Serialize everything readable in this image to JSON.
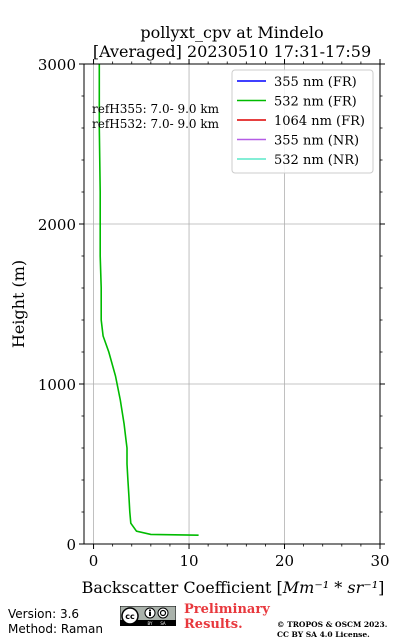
{
  "chart_data": {
    "type": "line",
    "title_line1": "pollyxt_cpv at Mindelo",
    "title_line2": "[Averaged] 20230510 17:31-17:59",
    "xlabel": "Backscatter Coefficient [",
    "xlabel_unit": "Mm⁻¹ * sr⁻¹",
    "xlabel_end": "]",
    "ylabel": "Height (m)",
    "xlim": [
      -1,
      30
    ],
    "ylim": [
      0,
      3000
    ],
    "xticks": [
      0,
      10,
      20,
      30
    ],
    "yticks": [
      0,
      1000,
      2000,
      3000
    ],
    "grid": true,
    "legend_position": "top-right",
    "annotations": [
      "refH355:  7.0- 9.0 km",
      "refH532:  7.0- 9.0 km"
    ],
    "series": [
      {
        "name": "355 nm (FR)",
        "color": "#0000ff",
        "x": [],
        "y": []
      },
      {
        "name": "532 nm (FR)",
        "color": "#00bb00",
        "x": [
          11,
          6,
          4.5,
          3.9,
          3.8,
          3.7,
          3.6,
          3.5,
          3.5,
          3.4,
          3.2,
          2.8,
          2.3,
          1.6,
          1.0,
          0.8,
          0.8,
          0.7,
          0.7,
          0.6,
          0.6
        ],
        "y": [
          55,
          60,
          80,
          130,
          200,
          300,
          400,
          500,
          600,
          650,
          750,
          900,
          1050,
          1200,
          1300,
          1400,
          1600,
          1800,
          2200,
          2600,
          3000
        ]
      },
      {
        "name": "1064 nm (FR)",
        "color": "#dd0000",
        "x": [],
        "y": []
      },
      {
        "name": "355 nm (NR)",
        "color": "#b45ce6",
        "x": [],
        "y": []
      },
      {
        "name": "532 nm (NR)",
        "color": "#5ae8c8",
        "x": [],
        "y": []
      }
    ]
  },
  "footer": {
    "version": "Version: 3.6",
    "method": "Method: Raman",
    "preliminary_line1": "Preliminary",
    "preliminary_line2": "Results.",
    "copyright_line1": "© TROPOS & OSCM 2023.",
    "copyright_line2": "CC BY SA 4.0 License."
  }
}
